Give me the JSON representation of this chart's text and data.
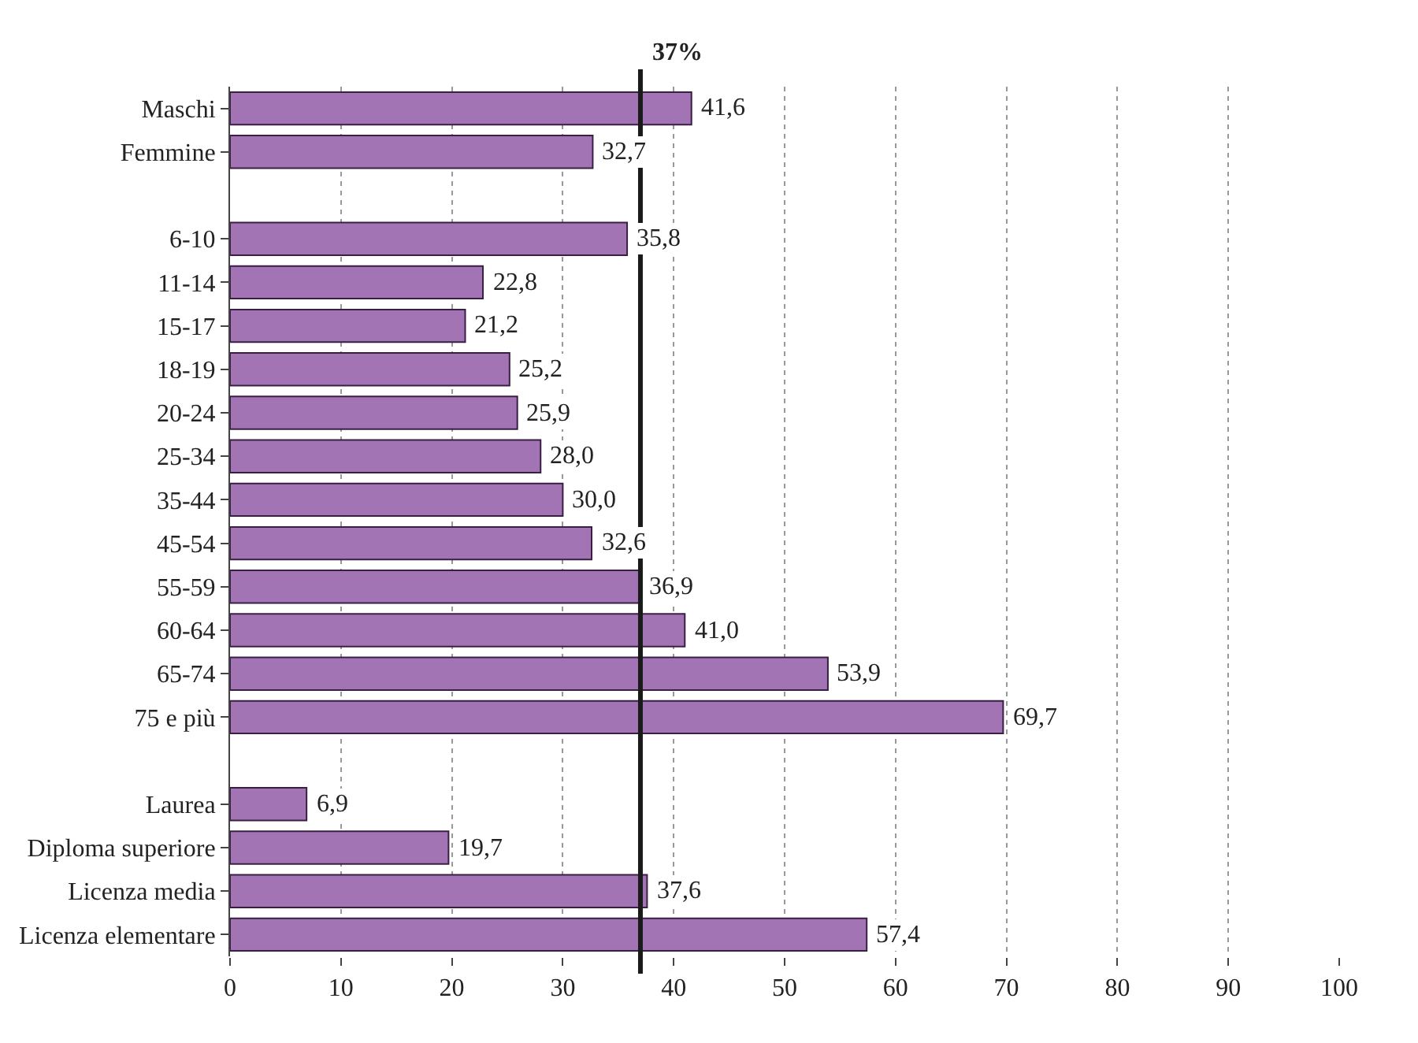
{
  "chart_data": {
    "type": "bar",
    "orientation": "horizontal",
    "categories": [
      "Maschi",
      "Femmine",
      null,
      "6-10",
      "11-14",
      "15-17",
      "18-19",
      "20-24",
      "25-34",
      "35-44",
      "45-54",
      "55-59",
      "60-64",
      "65-74",
      "75 e più",
      null,
      "Laurea",
      "Diploma superiore",
      "Licenza media",
      "Licenza elementare"
    ],
    "values": [
      41.6,
      32.7,
      null,
      35.8,
      22.8,
      21.2,
      25.2,
      25.9,
      28.0,
      30.0,
      32.6,
      36.9,
      41.0,
      53.9,
      69.7,
      null,
      6.9,
      19.7,
      37.6,
      57.4
    ],
    "value_labels": [
      "41,6",
      "32,7",
      null,
      "35,8",
      "22,8",
      "21,2",
      "25,2",
      "25,9",
      "28,0",
      "30,0",
      "32,6",
      "36,9",
      "41,0",
      "53,9",
      "69,7",
      null,
      "6,9",
      "19,7",
      "37,6",
      "57,4"
    ],
    "color": "#a274b4",
    "xlim": [
      0,
      100
    ],
    "xticks": [
      0,
      10,
      20,
      30,
      40,
      50,
      60,
      70,
      80,
      90,
      100
    ],
    "grid": "x",
    "ref_lines": [
      {
        "axis": "x",
        "value": 37,
        "label": "37%",
        "color": "#1a1a1a"
      }
    ]
  }
}
